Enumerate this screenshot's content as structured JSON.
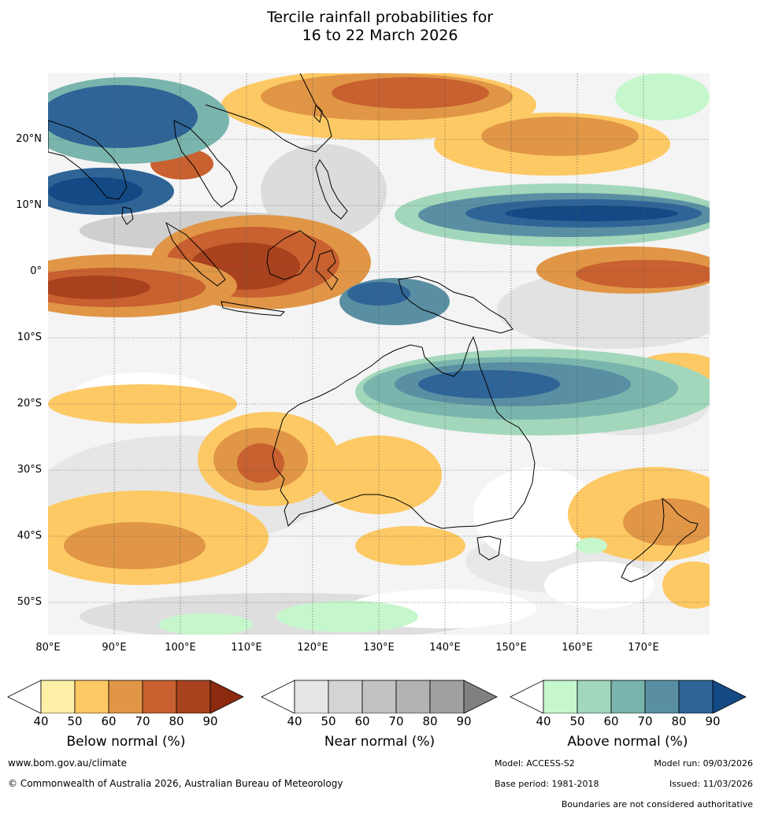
{
  "title": {
    "line1": "Tercile rainfall probabilities for",
    "line2": "16 to 22 March 2026"
  },
  "map": {
    "lat_labels": [
      "20°N",
      "10°N",
      "0°",
      "10°S",
      "20°S",
      "30°S",
      "40°S",
      "50°S"
    ],
    "lon_labels": [
      "80°E",
      "90°E",
      "100°E",
      "110°E",
      "120°E",
      "130°E",
      "140°E",
      "150°E",
      "160°E",
      "170°E"
    ],
    "extent": {
      "lon_min": 80,
      "lon_max": 180,
      "lat_min": -55,
      "lat_max": 30
    }
  },
  "colorbars": [
    {
      "label": "Below normal (%)",
      "ticks": [
        "40",
        "50",
        "60",
        "70",
        "80",
        "90"
      ],
      "colors": [
        "#fff0a8",
        "#fdc964",
        "#e09646",
        "#c96030",
        "#a8421e",
        "#8c2a10"
      ]
    },
    {
      "label": "Near normal (%)",
      "ticks": [
        "40",
        "50",
        "60",
        "70",
        "80",
        "90"
      ],
      "colors": [
        "#e6e6e6",
        "#d4d4d4",
        "#c2c2c2",
        "#b2b2b2",
        "#a0a0a0",
        "#808080"
      ]
    },
    {
      "label": "Above normal (%)",
      "ticks": [
        "40",
        "50",
        "60",
        "70",
        "80",
        "90"
      ],
      "colors": [
        "#c6f7cc",
        "#a2d7bb",
        "#7ab5ad",
        "#5a8fa3",
        "#2f6497",
        "#134a85"
      ]
    }
  ],
  "footer": {
    "website": "www.bom.gov.au/climate",
    "copyright": "© Commonwealth of Australia 2026, Australian Bureau of Meteorology",
    "model": "Model: ACCESS-S2",
    "model_run": "Model run: 09/03/2026",
    "base_period": "Base period: 1981-2018",
    "issued": "Issued: 11/03/2026",
    "disclaimer": "Boundaries are not considered authoritative"
  },
  "colors": {
    "below": "#c96030",
    "near": "#c2c2c2",
    "above": "#2f6497",
    "coast": "#000000"
  }
}
